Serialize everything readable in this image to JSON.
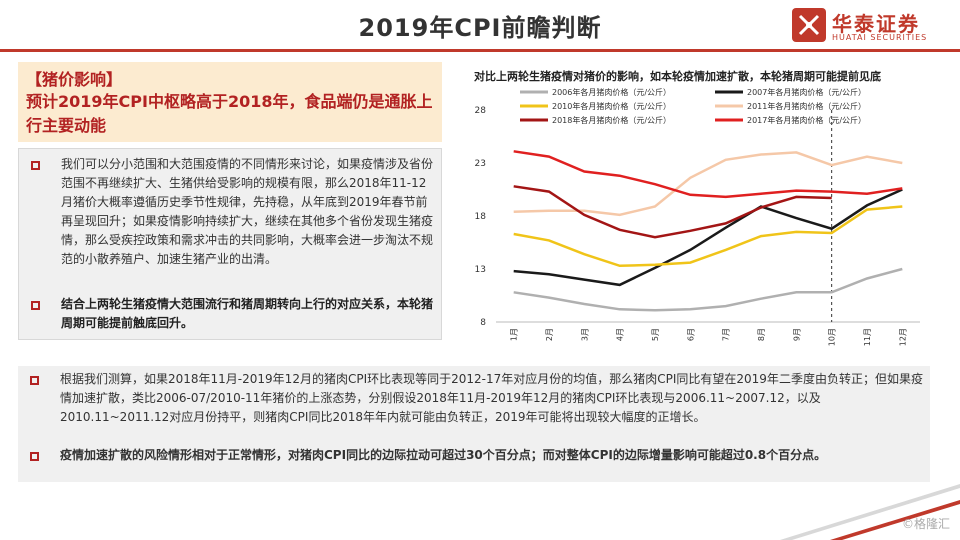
{
  "header": {
    "title": "2019年CPI前瞻判断",
    "logo_cn": "华泰证券",
    "logo_en": "HUATAI SECURITIES",
    "accent_color": "#c0392b"
  },
  "left_panel": {
    "heading_tag": "【猪价影响】",
    "heading_main": "预计2019年CPI中枢略高于2018年，食品端仍是通胀上行主要动能",
    "para1": "我们可以分小范围和大范围疫情的不同情形来讨论，如果疫情涉及省份范围不再继续扩大、生猪供给受影响的规模有限，那么2018年11-12月猪价大概率遵循历史季节性规律，先持稳，从年底到2019年春节前再呈现回升；如果疫情影响持续扩大，继续在其他多个省份发现生猪疫情，那么受疾控政策和需求冲击的共同影响，大概率会进一步淘汰不规范的小散养殖户、加速生猪产业的出清。",
    "para2": "结合上两轮生猪疫情大范围流行和猪周期转向上行的对应关系，本轮猪周期可能提前触底回升。"
  },
  "bottom_panel": {
    "para1": "根据我们测算，如果2018年11月-2019年12月的猪肉CPI环比表现等同于2012-17年对应月份的均值，那么猪肉CPI同比有望在2019年二季度由负转正；但如果疫情加速扩散，类比2006-07/2010-11年猪价的上涨态势，分别假设2018年11月-2019年12月的猪肉CPI环比表现与2006.11~2007.12，以及2010.11~2011.12对应月份持平，则猪肉CPI同比2018年年内就可能由负转正，2019年可能将出现较大幅度的正增长。",
    "para2": "疫情加速扩散的风险情形相对于正常情形，对猪肉CPI同比的边际拉动可超过30个百分点；而对整体CPI的边际增量影响可能超过0.8个百分点。"
  },
  "chart_data": {
    "type": "line",
    "title": "对比上两轮生猪疫情对猪价的影响，如本轮疫情加速扩散，本轮猪周期可能提前见底",
    "categories": [
      "1月",
      "2月",
      "3月",
      "4月",
      "5月",
      "6月",
      "7月",
      "8月",
      "9月",
      "10月",
      "11月",
      "12月"
    ],
    "ylim": [
      8,
      28
    ],
    "yticks": [
      8,
      13,
      18,
      23,
      28
    ],
    "divider_after_category": "10月",
    "series": [
      {
        "name": "2006年各月猪肉价格（元/公斤）",
        "color": "#b0b0b0",
        "values": [
          10.8,
          10.3,
          9.7,
          9.2,
          9.1,
          9.2,
          9.5,
          10.2,
          10.8,
          10.8,
          12.1,
          13.0
        ]
      },
      {
        "name": "2007年各月猪肉价格（元/公斤）",
        "color": "#1a1a1a",
        "values": [
          12.8,
          12.5,
          12.0,
          11.5,
          13.1,
          14.8,
          16.9,
          18.9,
          17.8,
          16.8,
          19.0,
          20.5
        ]
      },
      {
        "name": "2010年各月猪肉价格（元/公斤）",
        "color": "#f0c419",
        "values": [
          16.3,
          15.7,
          14.4,
          13.3,
          13.4,
          13.6,
          14.8,
          16.1,
          16.5,
          16.4,
          18.6,
          18.9
        ]
      },
      {
        "name": "2011年各月猪肉价格（元/公斤）",
        "color": "#f5c8a8",
        "values": [
          18.4,
          18.5,
          18.5,
          18.1,
          18.9,
          21.6,
          23.3,
          23.8,
          24.0,
          22.8,
          23.6,
          23.0
        ]
      },
      {
        "name": "2018年各月猪肉价格（元/公斤）",
        "color": "#a31515",
        "values": [
          20.8,
          20.3,
          18.1,
          16.7,
          16.0,
          16.6,
          17.3,
          18.8,
          19.8,
          19.7,
          null,
          null
        ]
      },
      {
        "name": "2017年各月猪肉价格（元/公斤）",
        "color": "#e02020",
        "values": [
          24.1,
          23.6,
          22.2,
          21.8,
          21.0,
          20.0,
          19.8,
          20.1,
          20.4,
          20.3,
          20.1,
          20.6
        ]
      }
    ]
  },
  "watermark": "©格隆汇"
}
